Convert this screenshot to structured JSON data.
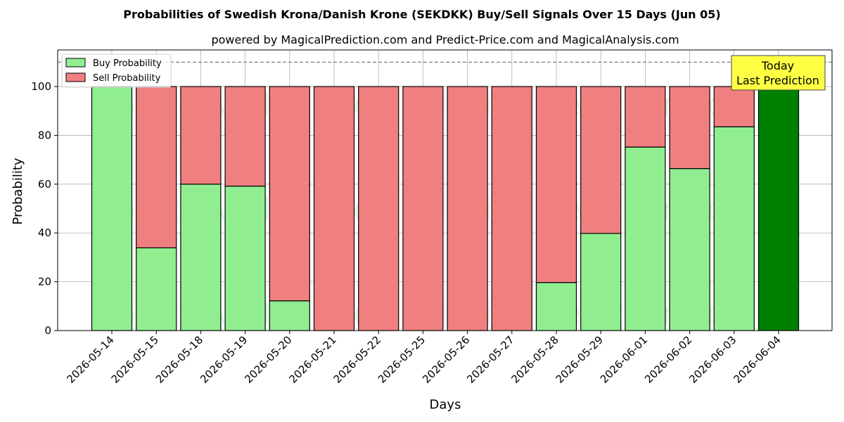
{
  "chart_data": {
    "type": "bar",
    "title": "Probabilities of Swedish Krona/Danish Krone (SEKDKK) Buy/Sell Signals Over 15 Days (Jun 05)",
    "subtitle": "powered by MagicalPrediction.com and Predict-Price.com and MagicalAnalysis.com",
    "xlabel": "Days",
    "ylabel": "Probability",
    "ylim": [
      0,
      115
    ],
    "yticks": [
      0,
      20,
      40,
      60,
      80,
      100
    ],
    "reference_line": 110,
    "grid": true,
    "stacked": true,
    "legend_position": "top-left",
    "categories": [
      "2026-05-14",
      "2026-05-15",
      "2026-05-18",
      "2026-05-19",
      "2026-05-20",
      "2026-05-21",
      "2026-05-22",
      "2026-05-25",
      "2026-05-26",
      "2026-05-27",
      "2026-05-28",
      "2026-05-29",
      "2026-06-01",
      "2026-06-02",
      "2026-06-03",
      "2026-06-04"
    ],
    "series": [
      {
        "name": "Buy Probability",
        "color": "#90ee90",
        "values": [
          100,
          33.9,
          60,
          59.2,
          12.2,
          0,
          0,
          0,
          0,
          0,
          19.7,
          39.8,
          75.2,
          66.4,
          83.5,
          100
        ]
      },
      {
        "name": "Sell Probability",
        "color": "#f08080",
        "values": [
          0,
          66.1,
          40,
          40.8,
          87.8,
          100,
          100,
          100,
          100,
          100,
          80.3,
          60.2,
          24.8,
          33.6,
          16.5,
          0
        ]
      }
    ],
    "highlight": {
      "index": 15,
      "color": "#008000"
    },
    "annotation": {
      "lines": [
        "Today",
        "Last Prediction"
      ],
      "position": "top-right",
      "background": "#ffff44"
    },
    "watermarks": [
      "MagicalAnalysis.com",
      "MagicalPrediction.com"
    ]
  }
}
